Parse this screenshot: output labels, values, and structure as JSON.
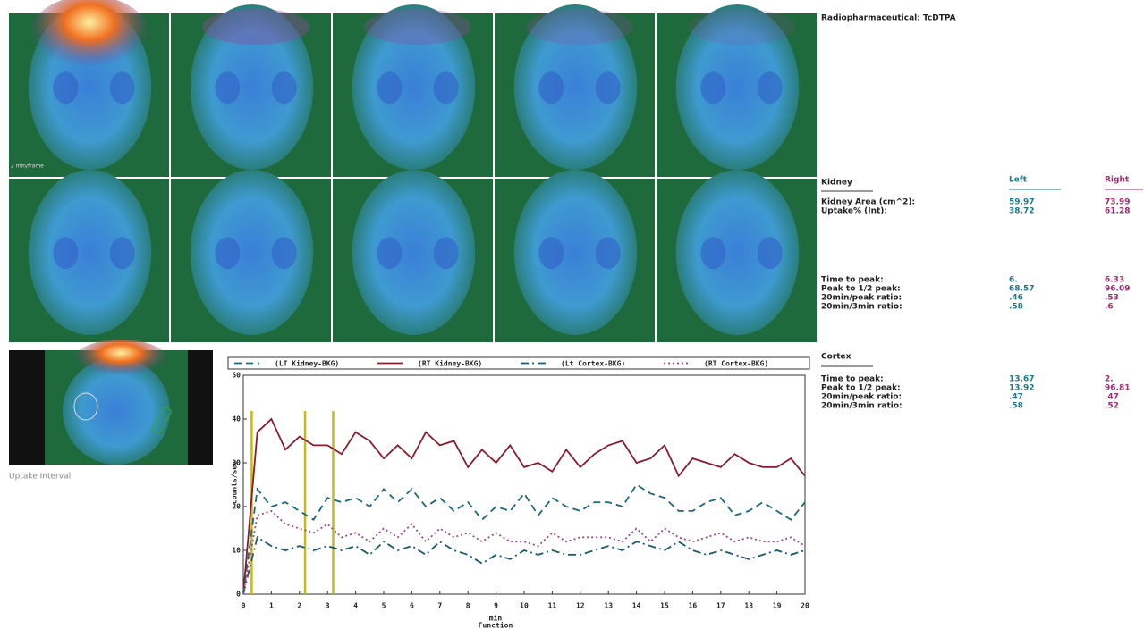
{
  "report": {
    "title": "Radiopharmaceutical: TcDTPA",
    "frame_note": "2 min/frame",
    "image_caption": "Uptake Interval",
    "kidney": {
      "header": "Kidney",
      "left": "Left",
      "right": "Right",
      "rows": [
        [
          "Kidney Area (cm^2):",
          "59.97",
          "73.99"
        ],
        [
          "Uptake% (Int):",
          "38.72",
          "61.28"
        ]
      ],
      "rows2": [
        [
          "Time to peak:",
          "6.",
          "6.33"
        ],
        [
          "Peak to 1/2 peak:",
          "68.57",
          "96.09"
        ],
        [
          "20min/peak ratio:",
          ".46",
          ".53"
        ],
        [
          "20min/3min ratio:",
          ".58",
          ".6"
        ]
      ]
    },
    "cortex": {
      "header": "Cortex",
      "rows": [
        [
          "Time to peak:",
          "13.67",
          "2."
        ],
        [
          "Peak to 1/2 peak:",
          "13.92",
          "96.81"
        ],
        [
          "20min/peak ratio:",
          ".47",
          ".47"
        ],
        [
          "20min/3min ratio:",
          ".58",
          ".52"
        ]
      ]
    }
  },
  "chart_data": {
    "type": "line",
    "xlabel": "min",
    "xlabel2": "Function",
    "ylabel": "counts/sec",
    "x": [
      0,
      0.5,
      1,
      1.5,
      2,
      2.5,
      3,
      3.5,
      4,
      4.5,
      5,
      5.5,
      6,
      6.5,
      7,
      7.5,
      8,
      8.5,
      9,
      9.5,
      10,
      10.5,
      11,
      11.5,
      12,
      12.5,
      13,
      13.5,
      14,
      14.5,
      15,
      15.5,
      16,
      16.5,
      17,
      17.5,
      18,
      18.5,
      19,
      19.5,
      20
    ],
    "series": [
      {
        "name": "(LT Kidney-BKG)",
        "color": "#1a6b7a",
        "dash": "8,5",
        "values": [
          0,
          24,
          20,
          21,
          19,
          17,
          22,
          21,
          22,
          20,
          24,
          21,
          24,
          20,
          22,
          19,
          21,
          17,
          20,
          19,
          23,
          18,
          22,
          20,
          19,
          21,
          21,
          20,
          25,
          23,
          22,
          19,
          19,
          21,
          22,
          18,
          19,
          21,
          19,
          17,
          21
        ]
      },
      {
        "name": "(RT Kidney-BKG)",
        "color": "#8b1a2e",
        "dash": "none",
        "values": [
          0,
          37,
          40,
          33,
          36,
          34,
          34,
          32,
          37,
          35,
          31,
          34,
          31,
          37,
          34,
          35,
          29,
          33,
          30,
          34,
          29,
          30,
          28,
          33,
          29,
          32,
          34,
          35,
          30,
          31,
          34,
          27,
          31,
          30,
          29,
          32,
          30,
          29,
          29,
          31,
          27
        ]
      },
      {
        "name": "(Lt Cortex-BKG)",
        "color": "#1a5c6a",
        "dash": "9,4,2,4",
        "values": [
          0,
          13,
          11,
          10,
          11,
          10,
          11,
          10,
          11,
          9,
          12,
          10,
          11,
          9,
          12,
          10,
          9,
          7,
          9,
          8,
          10,
          9,
          10,
          9,
          9,
          10,
          11,
          10,
          12,
          11,
          10,
          12,
          10,
          9,
          10,
          9,
          8,
          9,
          10,
          9,
          10
        ]
      },
      {
        "name": "(RT Cortex-BKG)",
        "color": "#9a4a8a",
        "dash": "2,3",
        "values": [
          0,
          18,
          19,
          16,
          15,
          14,
          16,
          13,
          14,
          12,
          15,
          13,
          16,
          12,
          15,
          13,
          14,
          12,
          14,
          12,
          12,
          11,
          14,
          12,
          13,
          13,
          13,
          12,
          15,
          12,
          15,
          13,
          12,
          13,
          14,
          12,
          13,
          12,
          12,
          13,
          11
        ]
      }
    ],
    "markers": [
      0.3,
      2.2,
      3.2
    ],
    "marker_color": "#c8b820",
    "xlim": [
      0,
      20
    ],
    "xticks": [
      0,
      1,
      2,
      3,
      4,
      5,
      6,
      7,
      8,
      9,
      10,
      11,
      12,
      13,
      14,
      15,
      16,
      17,
      18,
      19,
      20
    ],
    "ylim": [
      0,
      50
    ],
    "yticks": [
      0,
      10,
      20,
      30,
      40,
      50
    ]
  }
}
